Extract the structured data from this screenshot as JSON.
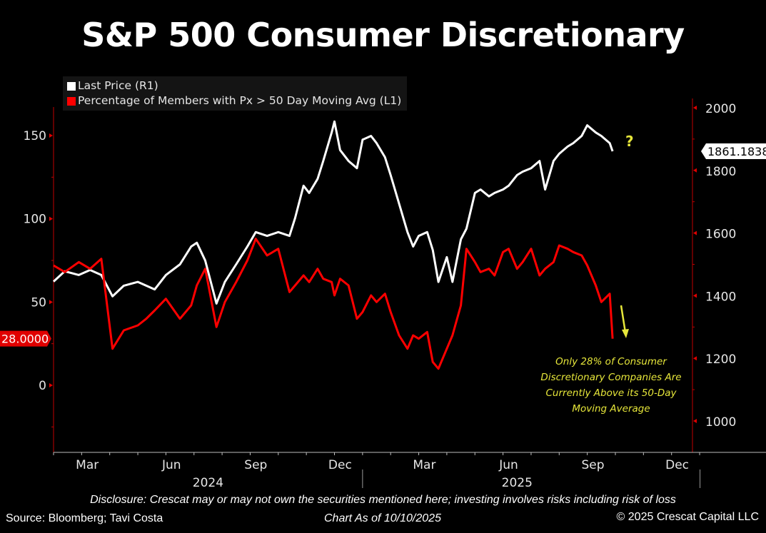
{
  "title": "S&P 500 Consumer Discretionary",
  "legend": [
    {
      "label": "Last Price  (R1)",
      "color": "#ffffff"
    },
    {
      "label": "Percentage of Members with Px > 50 Day Moving Avg  (L1)",
      "color": "#ff0000"
    }
  ],
  "annotation": {
    "question_mark": "?",
    "text_lines": [
      "Only 28% of Consumer",
      "Discretionary Companies Are",
      "Currently Above its 50-Day",
      "Moving Average"
    ],
    "color": "#e6e63a"
  },
  "footer": {
    "disclosure": "Disclosure: Crescat may or may not own the securities mentioned here; investing involves risks including risk of loss",
    "source": "Source: Bloomberg; Tavi Costa",
    "chart_date": "Chart As of 10/10/2025",
    "copyright": "© 2025 Crescat Capital LLC"
  },
  "chart_data": {
    "type": "line",
    "title": "S&P 500 Consumer Discretionary",
    "xlabel": "",
    "x_tick_labels": [
      "Mar",
      "Jun",
      "Sep",
      "Dec",
      "Mar",
      "Jun",
      "Sep",
      "Dec"
    ],
    "x_year_labels": [
      "2024",
      "2025"
    ],
    "x_range": [
      "2024-02-01",
      "2025-12-31"
    ],
    "left_axis": {
      "label": "L1",
      "ticks": [
        0,
        50,
        100,
        150
      ],
      "range": [
        -40,
        165
      ],
      "color": "#ff0000"
    },
    "right_axis": {
      "label": "R1",
      "ticks": [
        1000,
        1200,
        1400,
        1600,
        1800,
        2000
      ],
      "range": [
        900,
        2010
      ],
      "color": "#ff0000"
    },
    "last_values": {
      "left": "28.0000",
      "right": "1861.1838"
    },
    "grid": false,
    "legend_position": "top-left",
    "x_months_from_start": [
      0.0,
      0.4,
      0.9,
      1.3,
      1.7,
      2.1,
      2.5,
      3.0,
      3.3,
      3.6,
      4.0,
      4.5,
      4.9,
      5.1,
      5.4,
      5.8,
      6.1,
      6.5,
      6.9,
      7.2,
      7.6,
      8.0,
      8.4,
      8.6,
      8.9,
      9.1,
      9.4,
      9.6,
      9.9,
      10.0,
      10.2,
      10.5,
      10.8,
      11.0,
      11.3,
      11.5,
      11.8,
      12.0,
      12.3,
      12.6,
      12.8,
      13.0,
      13.3,
      13.5,
      13.7,
      14.0,
      14.2,
      14.5,
      14.7,
      15.0,
      15.2,
      15.5,
      15.7,
      16.0,
      16.2,
      16.5,
      16.7,
      17.0,
      17.3,
      17.5,
      17.8,
      18.0,
      18.3,
      18.5,
      18.8,
      19.0,
      19.3,
      19.5,
      19.8,
      19.9
    ],
    "series": [
      {
        "name": "Last Price",
        "axis": "right",
        "color": "#ffffff",
        "values": [
          1445,
          1478,
          1466,
          1482,
          1466,
          1398,
          1432,
          1444,
          1432,
          1420,
          1466,
          1500,
          1557,
          1569,
          1512,
          1375,
          1444,
          1500,
          1557,
          1603,
          1591,
          1603,
          1591,
          1648,
          1751,
          1728,
          1773,
          1830,
          1921,
          1956,
          1865,
          1830,
          1807,
          1898,
          1910,
          1887,
          1842,
          1785,
          1694,
          1603,
          1557,
          1591,
          1603,
          1546,
          1444,
          1523,
          1444,
          1580,
          1614,
          1728,
          1739,
          1717,
          1728,
          1739,
          1751,
          1785,
          1796,
          1807,
          1830,
          1739,
          1830,
          1853,
          1876,
          1887,
          1910,
          1944,
          1921,
          1910,
          1887,
          1861
        ]
      },
      {
        "name": "Percentage of Members with Px > 50 Day Moving Avg",
        "axis": "left",
        "color": "#ff0000",
        "values": [
          72,
          68,
          74,
          70,
          76,
          22,
          33,
          36,
          40,
          45,
          52,
          40,
          48,
          60,
          70,
          35,
          50,
          62,
          75,
          88,
          78,
          82,
          56,
          60,
          66,
          62,
          70,
          64,
          62,
          54,
          64,
          60,
          40,
          44,
          54,
          50,
          55,
          44,
          30,
          22,
          30,
          28,
          32,
          14,
          10,
          22,
          30,
          48,
          82,
          74,
          68,
          70,
          66,
          80,
          82,
          70,
          74,
          82,
          66,
          70,
          74,
          84,
          82,
          80,
          78,
          72,
          60,
          50,
          55,
          28
        ]
      }
    ],
    "annotations": [
      "?",
      "Only 28% of Consumer Discretionary Companies Are Currently Above its 50-Day Moving Average"
    ]
  }
}
